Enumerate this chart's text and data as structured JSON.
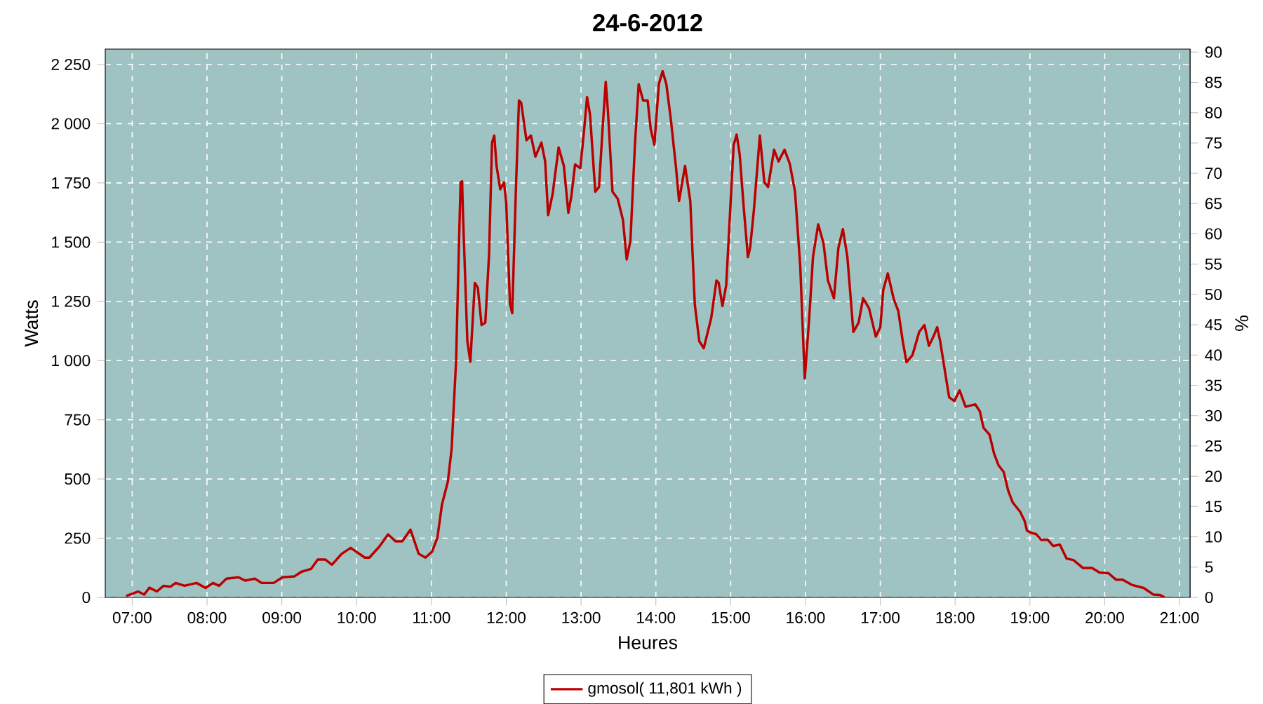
{
  "chart_data": {
    "type": "line",
    "title": "24-6-2012",
    "xlabel": "Heures",
    "ylabel": "Watts",
    "y2label": "%",
    "x": [
      6.92,
      7.08,
      7.16,
      7.23,
      7.33,
      7.42,
      7.51,
      7.58,
      7.7,
      7.86,
      7.98,
      8.08,
      8.16,
      8.26,
      8.42,
      8.51,
      8.64,
      8.73,
      8.89,
      9.01,
      9.17,
      9.26,
      9.39,
      9.48,
      9.58,
      9.67,
      9.8,
      9.92,
      10.11,
      10.17,
      10.3,
      10.42,
      10.52,
      10.61,
      10.72,
      10.83,
      10.92,
      11.01,
      11.08,
      11.14,
      11.22,
      11.27,
      11.33,
      11.37,
      11.39,
      11.41,
      11.42,
      11.48,
      11.52,
      11.58,
      11.62,
      11.67,
      11.72,
      11.77,
      11.81,
      11.84,
      11.87,
      11.92,
      11.97,
      12.0,
      12.05,
      12.08,
      12.13,
      12.17,
      12.2,
      12.27,
      12.33,
      12.39,
      12.47,
      12.52,
      12.56,
      12.62,
      12.7,
      12.77,
      12.83,
      12.87,
      12.92,
      12.99,
      13.04,
      13.08,
      13.12,
      13.19,
      13.24,
      13.29,
      13.33,
      13.36,
      13.42,
      13.49,
      13.56,
      13.61,
      13.66,
      13.72,
      13.77,
      13.83,
      13.89,
      13.93,
      13.98,
      14.04,
      14.09,
      14.14,
      14.2,
      14.27,
      14.31,
      14.39,
      14.46,
      14.52,
      14.58,
      14.64,
      14.74,
      14.81,
      14.84,
      14.89,
      14.94,
      14.99,
      15.04,
      15.08,
      15.12,
      15.17,
      15.23,
      15.26,
      15.31,
      15.39,
      15.45,
      15.5,
      15.58,
      15.64,
      15.72,
      15.79,
      15.86,
      15.93,
      15.99,
      16.05,
      16.1,
      16.17,
      16.24,
      16.3,
      16.38,
      16.44,
      16.5,
      16.56,
      16.64,
      16.71,
      16.77,
      16.85,
      16.94,
      17.0,
      17.04,
      17.1,
      17.18,
      17.24,
      17.3,
      17.35,
      17.43,
      17.52,
      17.59,
      17.65,
      17.71,
      17.76,
      17.8,
      17.86,
      17.92,
      17.99,
      18.06,
      18.14,
      18.27,
      18.33,
      18.38,
      18.46,
      18.52,
      18.58,
      18.65,
      18.71,
      18.77,
      18.87,
      18.93,
      18.96,
      19.02,
      19.08,
      19.15,
      19.24,
      19.31,
      19.4,
      19.49,
      19.58,
      19.71,
      19.83,
      19.93,
      20.05,
      20.15,
      20.24,
      20.37,
      20.52,
      20.65,
      20.74,
      20.8
    ],
    "series": [
      {
        "name": "gmosol( 11,801 kWh )",
        "color": "#bb0000",
        "values": [
          6,
          25,
          12,
          41,
          25,
          49,
          45,
          61,
          49,
          61,
          40,
          61,
          49,
          79,
          85,
          71,
          79,
          61,
          61,
          85,
          89,
          108,
          120,
          160,
          160,
          138,
          184,
          209,
          168,
          168,
          213,
          266,
          237,
          237,
          286,
          184,
          168,
          194,
          253,
          391,
          490,
          628,
          1002,
          1516,
          1752,
          1757,
          1634,
          1082,
          995,
          1328,
          1308,
          1150,
          1160,
          1446,
          1920,
          1950,
          1822,
          1723,
          1752,
          1664,
          1239,
          1200,
          1733,
          2098,
          2088,
          1930,
          1950,
          1861,
          1920,
          1841,
          1614,
          1703,
          1900,
          1822,
          1624,
          1693,
          1828,
          1812,
          1970,
          2112,
          2038,
          1713,
          1733,
          1989,
          2177,
          2049,
          1713,
          1683,
          1594,
          1427,
          1506,
          1911,
          2167,
          2098,
          2098,
          1979,
          1911,
          2167,
          2222,
          2167,
          2019,
          1812,
          1674,
          1822,
          1674,
          1239,
          1082,
          1052,
          1180,
          1338,
          1328,
          1230,
          1318,
          1614,
          1911,
          1954,
          1871,
          1664,
          1437,
          1476,
          1634,
          1950,
          1752,
          1733,
          1890,
          1841,
          1890,
          1831,
          1713,
          1397,
          924,
          1180,
          1437,
          1575,
          1496,
          1338,
          1263,
          1476,
          1555,
          1437,
          1121,
          1160,
          1263,
          1220,
          1101,
          1141,
          1299,
          1368,
          1259,
          1210,
          1082,
          993,
          1023,
          1121,
          1150,
          1062,
          1101,
          1141,
          1082,
          963,
          845,
          829,
          874,
          805,
          815,
          786,
          716,
          687,
          608,
          558,
          529,
          450,
          401,
          361,
          322,
          282,
          272,
          268,
          243,
          243,
          217,
          223,
          164,
          158,
          124,
          124,
          105,
          102,
          75,
          75,
          52,
          40,
          12,
          10,
          0
        ]
      }
    ],
    "xlim": [
      6.64,
      21.14
    ],
    "xticks": [
      {
        "value": 7,
        "label": "07:00"
      },
      {
        "value": 8,
        "label": "08:00"
      },
      {
        "value": 9,
        "label": "09:00"
      },
      {
        "value": 10,
        "label": "10:00"
      },
      {
        "value": 11,
        "label": "11:00"
      },
      {
        "value": 12,
        "label": "12:00"
      },
      {
        "value": 13,
        "label": "13:00"
      },
      {
        "value": 14,
        "label": "14:00"
      },
      {
        "value": 15,
        "label": "15:00"
      },
      {
        "value": 16,
        "label": "16:00"
      },
      {
        "value": 17,
        "label": "17:00"
      },
      {
        "value": 18,
        "label": "18:00"
      },
      {
        "value": 19,
        "label": "19:00"
      },
      {
        "value": 20,
        "label": "20:00"
      },
      {
        "value": 21,
        "label": "21:00"
      }
    ],
    "ylim": [
      0,
      2315
    ],
    "yticks": [
      0,
      250,
      500,
      750,
      {
        "value": 1000,
        "label": "1 000"
      },
      {
        "value": 1250,
        "label": "1 250"
      },
      {
        "value": 1500,
        "label": "1 500"
      },
      {
        "value": 1750,
        "label": "1 750"
      },
      {
        "value": 2000,
        "label": "2 000"
      },
      {
        "value": 2250,
        "label": "2 250"
      }
    ],
    "y2lim": [
      0,
      90.5
    ],
    "y2ticks": [
      0,
      5,
      10,
      15,
      20,
      25,
      30,
      35,
      40,
      45,
      50,
      55,
      60,
      65,
      70,
      75,
      80,
      85,
      90
    ],
    "grid": true,
    "legend": "bottom",
    "marker": "none",
    "line_style": "solid"
  }
}
